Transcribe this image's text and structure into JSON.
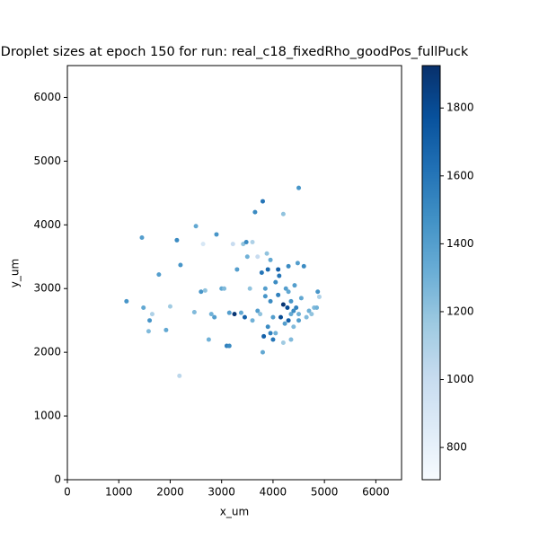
{
  "chart_data": {
    "type": "scatter",
    "title": "Droplet sizes at epoch 150 for run: real_c18_fixedRho_goodPos_fullPuck",
    "xlabel": "x_um",
    "ylabel": "y_um",
    "xlim": [
      0,
      6500
    ],
    "ylim": [
      0,
      6500
    ],
    "xticks": [
      0,
      1000,
      2000,
      3000,
      4000,
      5000,
      6000
    ],
    "yticks": [
      0,
      1000,
      2000,
      3000,
      4000,
      5000,
      6000
    ],
    "clim": [
      705,
      1925
    ],
    "cticks": [
      800,
      1000,
      1200,
      1400,
      1600,
      1800
    ],
    "colormap": [
      "#f7fbff",
      "#deebf7",
      "#c6dbef",
      "#9ecae1",
      "#6baed6",
      "#4292c6",
      "#2171b5",
      "#08519c",
      "#08306b"
    ],
    "x": [
      1150,
      1450,
      1480,
      1600,
      1580,
      1650,
      1780,
      1920,
      2000,
      2130,
      2200,
      2180,
      2500,
      2470,
      2600,
      2640,
      2680,
      2750,
      2800,
      2860,
      2900,
      3000,
      3050,
      3100,
      3150,
      3150,
      3250,
      3300,
      3220,
      3380,
      3420,
      3480,
      3450,
      3500,
      3550,
      3600,
      3600,
      3650,
      3700,
      3700,
      3750,
      3800,
      3780,
      3800,
      3820,
      3850,
      3880,
      3900,
      3900,
      3950,
      3950,
      4000,
      4000,
      4050,
      4100,
      4100,
      4150,
      4200,
      4200,
      4200,
      4250,
      4280,
      4300,
      4300,
      4350,
      4350,
      4400,
      4420,
      4450,
      4480,
      4500,
      4500,
      4550,
      4600,
      4650,
      4700,
      4750,
      4800,
      4850,
      4870,
      4900,
      4120,
      4350,
      4050,
      3950,
      3850,
      4230,
      4400,
      4500,
      4300
    ],
    "y": [
      2800,
      3800,
      2700,
      2500,
      2330,
      2600,
      3220,
      2350,
      2720,
      3760,
      3370,
      1630,
      3980,
      2630,
      2950,
      3700,
      2970,
      2200,
      2600,
      2550,
      3850,
      3000,
      3000,
      2100,
      2100,
      2620,
      2600,
      3300,
      3700,
      2620,
      3700,
      3730,
      2550,
      3500,
      3000,
      2500,
      3730,
      4200,
      2650,
      3500,
      2600,
      4370,
      3250,
      2000,
      2250,
      3000,
      3550,
      2400,
      3300,
      2800,
      3450,
      2200,
      2550,
      3100,
      2900,
      3300,
      2550,
      4170,
      2750,
      2150,
      3000,
      2700,
      2500,
      3350,
      2800,
      2600,
      2400,
      3050,
      2700,
      3400,
      4580,
      2600,
      2850,
      3350,
      2550,
      2650,
      2600,
      2700,
      2700,
      2950,
      2870,
      3200,
      2200,
      2300,
      2300,
      2880,
      2450,
      2650,
      2500,
      2950
    ],
    "values": [
      1450,
      1400,
      1350,
      1450,
      1250,
      1100,
      1400,
      1350,
      1150,
      1500,
      1450,
      1050,
      1350,
      1250,
      1450,
      900,
      1200,
      1300,
      1300,
      1400,
      1450,
      1350,
      1250,
      1550,
      1500,
      1400,
      1900,
      1400,
      1000,
      1350,
      1200,
      1500,
      1700,
      1300,
      1200,
      1300,
      1100,
      1500,
      1400,
      1000,
      1200,
      1600,
      1600,
      1350,
      1700,
      1400,
      1200,
      1500,
      1650,
      1500,
      1350,
      1600,
      1400,
      1500,
      1550,
      1700,
      1800,
      1200,
      1900,
      1150,
      1400,
      1800,
      1700,
      1500,
      1450,
      1350,
      1250,
      1400,
      1550,
      1400,
      1450,
      1300,
      1350,
      1500,
      1250,
      1300,
      1200,
      1250,
      1300,
      1450,
      1100,
      1600,
      1250,
      1300,
      1550,
      1450,
      1400,
      1500,
      1400,
      1350
    ]
  }
}
